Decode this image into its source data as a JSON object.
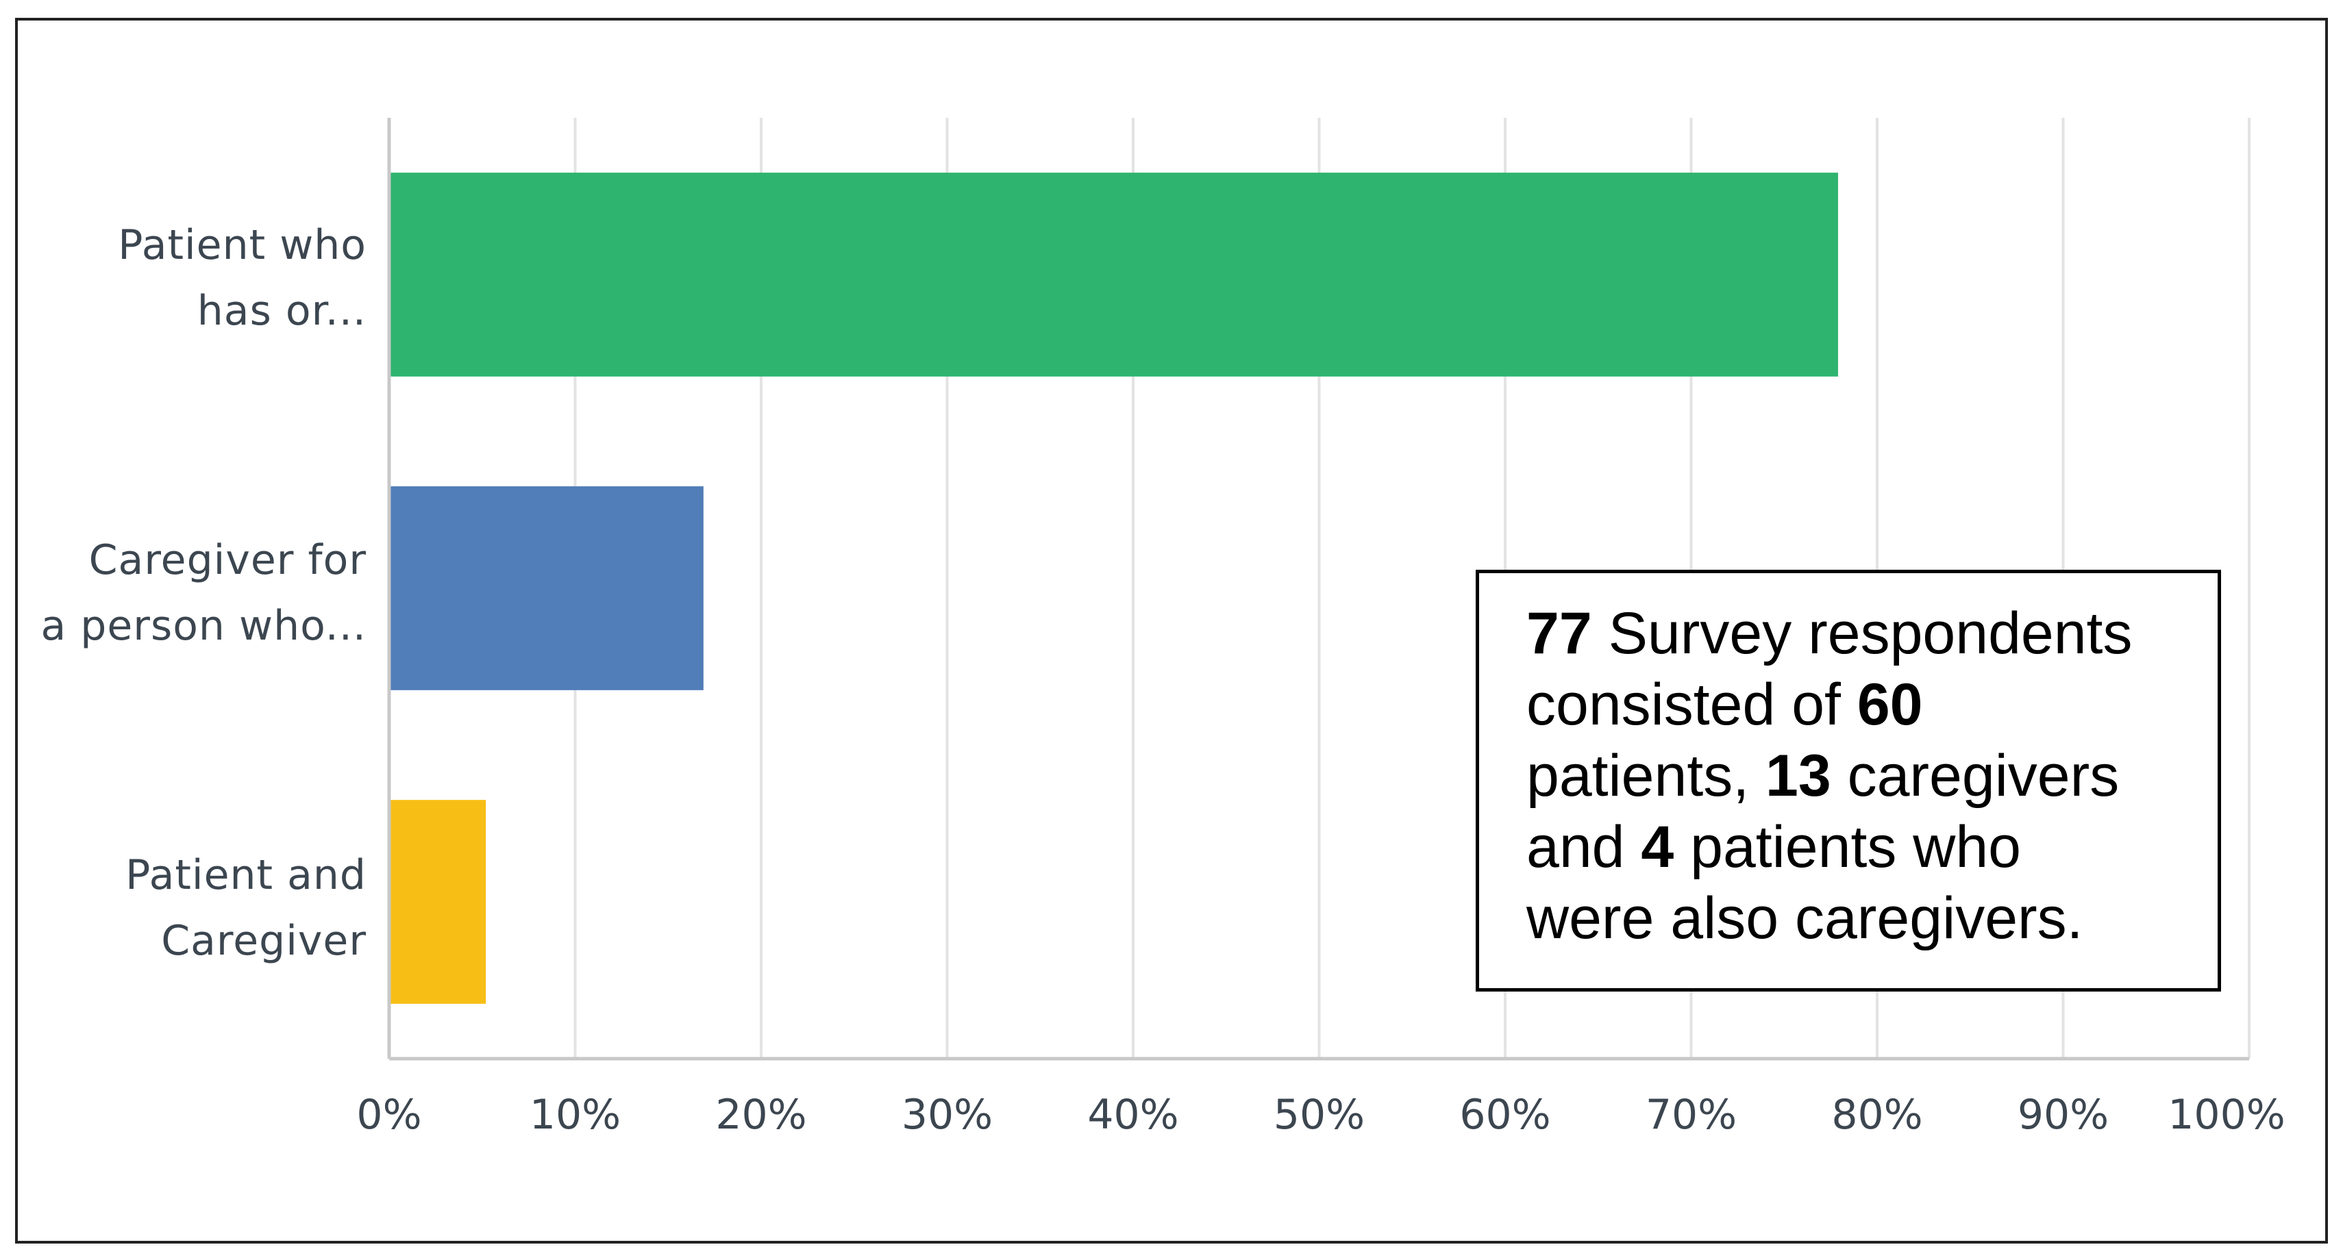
{
  "chart_data": {
    "type": "bar",
    "orientation": "horizontal",
    "categories": [
      "Patient who has or...",
      "Caregiver for a person who...",
      "Patient and Caregiver"
    ],
    "category_lines": [
      [
        "Patient who",
        "has or..."
      ],
      [
        "Caregiver for",
        "a person who..."
      ],
      [
        "Patient and",
        "Caregiver"
      ]
    ],
    "values": [
      77.9,
      16.9,
      5.2
    ],
    "bar_colors": [
      "#2eb46f",
      "#517db8",
      "#f7be16"
    ],
    "xlim": [
      0,
      100
    ],
    "x_ticks": [
      0,
      10,
      20,
      30,
      40,
      50,
      60,
      70,
      80,
      90,
      100
    ],
    "x_tick_labels": [
      "0%",
      "10%",
      "20%",
      "30%",
      "40%",
      "50%",
      "60%",
      "70%",
      "80%",
      "90%",
      "100%"
    ],
    "grid": "vertical",
    "title": "",
    "xlabel": "",
    "ylabel": "",
    "annotation": {
      "lines": [
        [
          {
            "text": "77",
            "bold": true
          },
          {
            "text": " Survey respondents",
            "bold": false
          }
        ],
        [
          {
            "text": "consisted of ",
            "bold": false
          },
          {
            "text": "60",
            "bold": true
          }
        ],
        [
          {
            "text": "patients, ",
            "bold": false
          },
          {
            "text": "13",
            "bold": true
          },
          {
            "text": " caregivers",
            "bold": false
          }
        ],
        [
          {
            "text": "and ",
            "bold": false
          },
          {
            "text": "4",
            "bold": true
          },
          {
            "text": " patients who",
            "bold": false
          }
        ],
        [
          {
            "text": "were also caregivers.",
            "bold": false
          }
        ]
      ]
    }
  },
  "colors": {
    "grid": "#e3e3e3",
    "axis": "#c8c8c8",
    "label_text": "#3c4650"
  }
}
